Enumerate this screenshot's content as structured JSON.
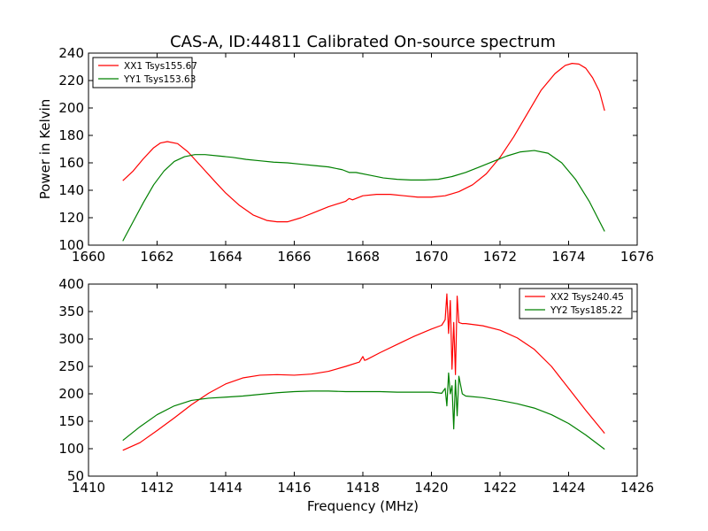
{
  "title": "CAS-A, ID:44811 Calibrated On-source spectrum",
  "chart_data": [
    {
      "type": "line",
      "title": "CAS-A, ID:44811 Calibrated On-source spectrum",
      "xlabel": "",
      "ylabel": "Power in Kelvin",
      "xlim": [
        1660,
        1676
      ],
      "ylim": [
        100,
        240
      ],
      "xticks": [
        1660,
        1662,
        1664,
        1666,
        1668,
        1670,
        1672,
        1674,
        1676
      ],
      "yticks": [
        100,
        120,
        140,
        160,
        180,
        200,
        220,
        240
      ],
      "grid": false,
      "legend_position": "top-left",
      "series": [
        {
          "name": "XX1 Tsys155.67",
          "color": "#ff0000",
          "x": [
            1661.0,
            1661.3,
            1661.6,
            1661.9,
            1662.1,
            1662.3,
            1662.6,
            1662.9,
            1663.3,
            1663.7,
            1664.0,
            1664.4,
            1664.8,
            1665.2,
            1665.5,
            1665.8,
            1666.2,
            1666.6,
            1667.0,
            1667.5,
            1667.6,
            1667.7,
            1668.0,
            1668.4,
            1668.8,
            1669.2,
            1669.6,
            1670.0,
            1670.4,
            1670.8,
            1671.2,
            1671.6,
            1672.0,
            1672.4,
            1672.8,
            1673.2,
            1673.6,
            1673.9,
            1674.1,
            1674.3,
            1674.5,
            1674.7,
            1674.9,
            1675.05
          ],
          "y": [
            147,
            154,
            163,
            171,
            174.5,
            175.5,
            174,
            168,
            157,
            146,
            138,
            129,
            122,
            118,
            117,
            117,
            120,
            124,
            128,
            132,
            134,
            133,
            136,
            137,
            137,
            136,
            135,
            135,
            136,
            139,
            144,
            152,
            164,
            179,
            196,
            213,
            225,
            231,
            232.5,
            232,
            229,
            222,
            212,
            198
          ]
        },
        {
          "name": "YY1 Tsys153.63",
          "color": "#008000",
          "x": [
            1661.0,
            1661.3,
            1661.6,
            1661.9,
            1662.2,
            1662.5,
            1662.8,
            1663.1,
            1663.4,
            1663.8,
            1664.2,
            1664.6,
            1665.0,
            1665.4,
            1665.8,
            1666.2,
            1666.6,
            1667.0,
            1667.4,
            1667.6,
            1667.8,
            1668.2,
            1668.6,
            1669.0,
            1669.4,
            1669.8,
            1670.2,
            1670.6,
            1671.0,
            1671.4,
            1671.8,
            1672.2,
            1672.6,
            1673.0,
            1673.4,
            1673.8,
            1674.2,
            1674.6,
            1675.05
          ],
          "y": [
            103,
            117,
            131,
            144,
            154,
            161,
            164.5,
            166,
            166,
            165,
            164,
            162.5,
            161.5,
            160.5,
            160,
            159,
            158,
            157,
            155,
            153,
            153,
            151,
            149,
            148,
            147.5,
            147.5,
            148,
            150,
            153,
            157,
            161,
            165,
            168,
            169,
            167,
            160,
            148,
            132,
            110
          ]
        }
      ]
    },
    {
      "type": "line",
      "title": "",
      "xlabel": "Frequency (MHz)",
      "ylabel": "",
      "xlim": [
        1410,
        1426
      ],
      "ylim": [
        50,
        400
      ],
      "xticks": [
        1410,
        1412,
        1414,
        1416,
        1418,
        1420,
        1422,
        1424,
        1426
      ],
      "yticks": [
        50,
        100,
        150,
        200,
        250,
        300,
        350,
        400
      ],
      "grid": false,
      "legend_position": "top-right",
      "series": [
        {
          "name": "XX2 Tsys240.45",
          "color": "#ff0000",
          "x": [
            1411.0,
            1411.5,
            1412.0,
            1412.5,
            1413.0,
            1413.5,
            1414.0,
            1414.5,
            1415.0,
            1415.5,
            1416.0,
            1416.5,
            1417.0,
            1417.5,
            1417.9,
            1418.0,
            1418.05,
            1418.1,
            1418.5,
            1419.0,
            1419.5,
            1420.0,
            1420.3,
            1420.4,
            1420.45,
            1420.5,
            1420.55,
            1420.6,
            1420.65,
            1420.7,
            1420.75,
            1420.8,
            1420.9,
            1421.0,
            1421.5,
            1422.0,
            1422.5,
            1423.0,
            1423.5,
            1424.0,
            1424.5,
            1425.05
          ],
          "y": [
            97,
            111,
            133,
            156,
            180,
            201,
            218,
            229,
            234,
            235,
            234,
            236,
            241,
            250,
            258,
            268,
            261,
            262,
            275,
            290,
            305,
            318,
            325,
            335,
            382,
            310,
            370,
            245,
            330,
            235,
            378,
            330,
            328,
            328,
            324,
            316,
            302,
            281,
            250,
            210,
            170,
            128
          ]
        },
        {
          "name": "YY2 Tsys185.22",
          "color": "#008000",
          "x": [
            1411.0,
            1411.5,
            1412.0,
            1412.5,
            1413.0,
            1413.5,
            1414.0,
            1414.5,
            1415.0,
            1415.5,
            1416.0,
            1416.5,
            1417.0,
            1417.5,
            1418.0,
            1418.5,
            1419.0,
            1419.5,
            1420.0,
            1420.3,
            1420.4,
            1420.45,
            1420.5,
            1420.55,
            1420.6,
            1420.65,
            1420.7,
            1420.75,
            1420.8,
            1420.9,
            1421.0,
            1421.5,
            1422.0,
            1422.5,
            1423.0,
            1423.5,
            1424.0,
            1424.5,
            1425.05
          ],
          "y": [
            115,
            140,
            162,
            178,
            188,
            192,
            194,
            196,
            199,
            202,
            204,
            205,
            205,
            204,
            204,
            204,
            203,
            203,
            203,
            201,
            210,
            178,
            238,
            200,
            215,
            136,
            225,
            160,
            232,
            200,
            196,
            193,
            188,
            182,
            174,
            162,
            146,
            125,
            99
          ]
        }
      ]
    }
  ]
}
